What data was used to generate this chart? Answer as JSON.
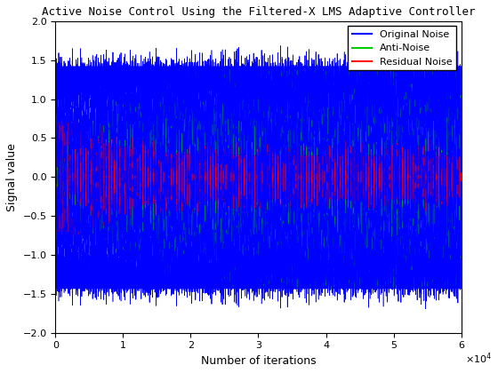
{
  "title": "Active Noise Control Using the Filtered-X LMS Adaptive Controller",
  "xlabel": "Number of iterations",
  "ylabel": "Signal value",
  "xlim": [
    0,
    60000
  ],
  "ylim": [
    -2,
    2
  ],
  "xticks": [
    0,
    10000,
    20000,
    30000,
    40000,
    50000,
    60000
  ],
  "xtick_labels": [
    "0",
    "1",
    "2",
    "3",
    "4",
    "5",
    "6"
  ],
  "yticks": [
    -2,
    -1.5,
    -1,
    -0.5,
    0,
    0.5,
    1,
    1.5,
    2
  ],
  "legend_labels": [
    "Original Noise",
    "Anti-Noise",
    "Residual Noise"
  ],
  "legend_colors": [
    "#0000ff",
    "#00cc00",
    "#ff0000"
  ],
  "bg_color": "#ffffff",
  "N": 60000,
  "orig_amp": 1.3,
  "orig_noise_std": 0.12,
  "anti_noise_tau": 8000,
  "anti_noise_inner_amp": 1.25,
  "residual_start_amp": 0.9,
  "residual_end_amp": 0.28,
  "residual_tau": 6000,
  "residual_noise_std": 0.06,
  "seed": 42,
  "figsize": [
    5.6,
    4.2
  ],
  "dpi": 100
}
